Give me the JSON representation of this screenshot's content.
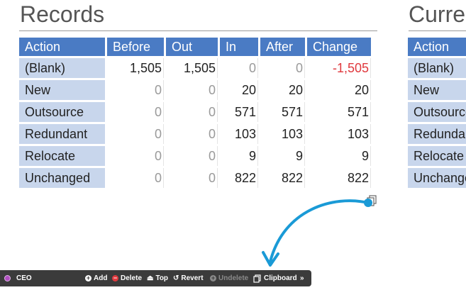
{
  "titles": {
    "records": "Records",
    "current": "Curre"
  },
  "columns": [
    "Action",
    "Before",
    "Out",
    "In",
    "After",
    "Change"
  ],
  "rows": [
    {
      "action": "(Blank)",
      "before": "1,505",
      "out": "1,505",
      "in": "0",
      "after": "0",
      "change": "-1,505"
    },
    {
      "action": "New",
      "before": "0",
      "out": "0",
      "in": "20",
      "after": "20",
      "change": "20"
    },
    {
      "action": "Outsource",
      "before": "0",
      "out": "0",
      "in": "571",
      "after": "571",
      "change": "571"
    },
    {
      "action": "Redundant",
      "before": "0",
      "out": "0",
      "in": "103",
      "after": "103",
      "change": "103"
    },
    {
      "action": "Relocate",
      "before": "0",
      "out": "0",
      "in": "9",
      "after": "9",
      "change": "9"
    },
    {
      "action": "Unchanged",
      "before": "0",
      "out": "0",
      "in": "822",
      "after": "822",
      "change": "822"
    }
  ],
  "current_table": {
    "header": "Action",
    "rows": [
      "(Blank)",
      "New",
      "Outsource",
      "Redundant",
      "Relocate",
      "Unchanged"
    ]
  },
  "toolbar": {
    "context": "CEO",
    "add": "Add",
    "delete": "Delete",
    "top": "Top",
    "revert": "Revert",
    "undelete": "Undelete",
    "clipboard": "Clipboard",
    "more": "»"
  },
  "colors": {
    "header_bg": "#4a7bc4",
    "label_bg": "#c8d6ec",
    "negative": "#e0393e",
    "arrow": "#1a9ad6",
    "toolbar_bg": "#3b3b3b"
  }
}
